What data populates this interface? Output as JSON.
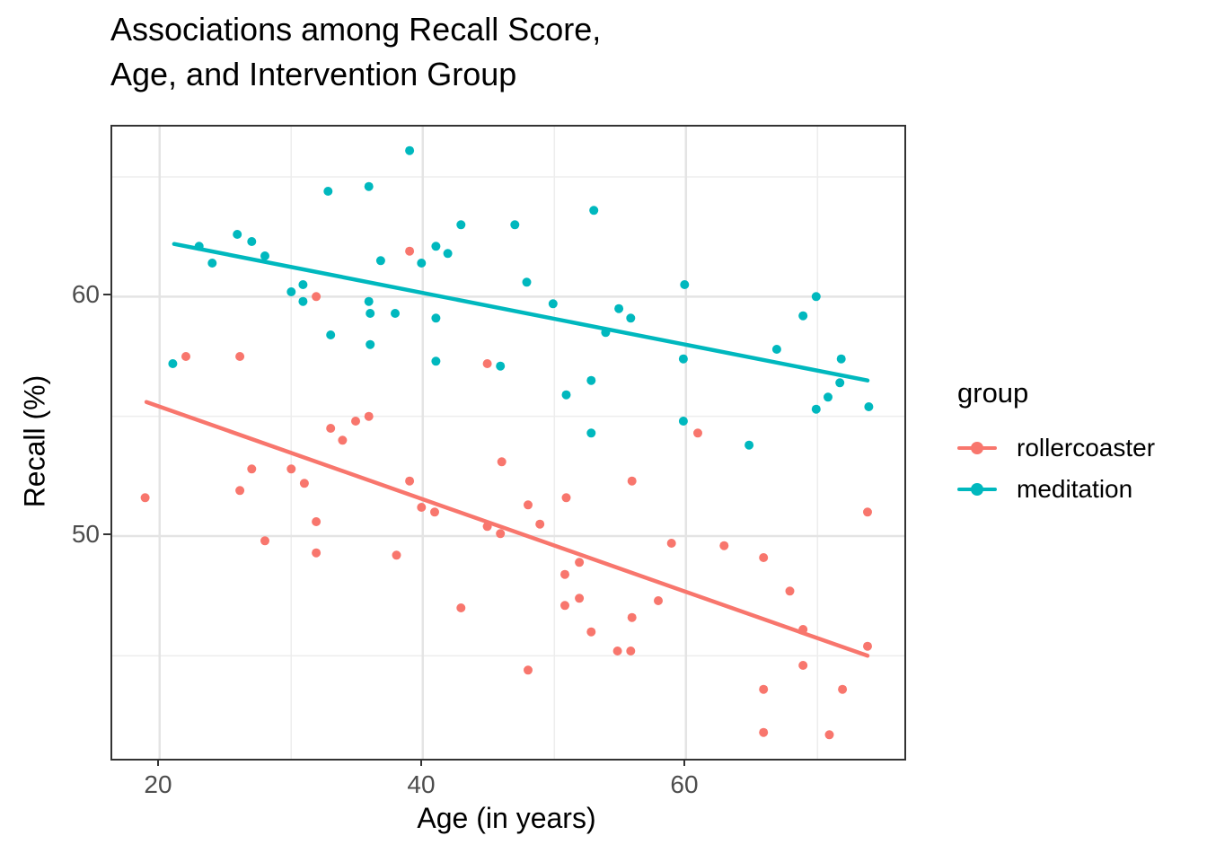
{
  "title": {
    "line1": "Associations among Recall Score,",
    "line2": "Age, and Intervention Group"
  },
  "axes": {
    "x": {
      "label": "Age (in years)",
      "tick_labels": [
        "20",
        "40",
        "60"
      ],
      "tick_values": [
        20,
        40,
        60
      ],
      "minor_values": [
        30,
        50,
        70
      ],
      "range": [
        16.4,
        76.6
      ]
    },
    "y": {
      "label": "Recall (%)",
      "tick_labels": [
        "50",
        "60"
      ],
      "tick_values": [
        50,
        60
      ],
      "minor_values": [
        45,
        55,
        65
      ],
      "range": [
        40.7,
        67.1
      ]
    }
  },
  "legend": {
    "title": "group",
    "entries": [
      {
        "label": "rollercoaster",
        "color": "#F8766D"
      },
      {
        "label": "meditation",
        "color": "#00B8BE"
      }
    ]
  },
  "style": {
    "major_grid_color": "#E4E4E4",
    "minor_grid_color": "#EDEDED",
    "panel_border_color": "#333333",
    "tick_text_color": "#4d4d4d",
    "point_radius": 5,
    "trend_width": 4.5
  },
  "chart_data": {
    "type": "scatter",
    "title": "Associations among Recall Score,\nAge, and Intervention Group",
    "xlabel": "Age (in years)",
    "ylabel": "Recall (%)",
    "xlim": [
      16.4,
      76.6
    ],
    "ylim": [
      40.7,
      67.1
    ],
    "grid": true,
    "legend_position": "right",
    "legend_title": "group",
    "series": [
      {
        "name": "rollercoaster",
        "color": "#F8766D",
        "points": [
          [
            18.9,
            51.6
          ],
          [
            22.0,
            57.5
          ],
          [
            26.1,
            57.5
          ],
          [
            26.1,
            51.9
          ],
          [
            27.0,
            52.8
          ],
          [
            28.0,
            49.8
          ],
          [
            30.0,
            52.8
          ],
          [
            31.0,
            52.2
          ],
          [
            31.9,
            60.0
          ],
          [
            31.9,
            50.6
          ],
          [
            31.9,
            49.3
          ],
          [
            33.0,
            54.5
          ],
          [
            33.9,
            54.0
          ],
          [
            34.9,
            54.8
          ],
          [
            35.9,
            55.0
          ],
          [
            38.0,
            49.2
          ],
          [
            39.0,
            61.9
          ],
          [
            39.0,
            52.3
          ],
          [
            39.9,
            51.2
          ],
          [
            40.9,
            51.0
          ],
          [
            42.9,
            47.0
          ],
          [
            44.9,
            57.2
          ],
          [
            44.9,
            50.4
          ],
          [
            45.9,
            50.1
          ],
          [
            46.0,
            53.1
          ],
          [
            48.0,
            51.3
          ],
          [
            48.0,
            44.4
          ],
          [
            48.9,
            50.5
          ],
          [
            50.9,
            51.6
          ],
          [
            50.8,
            48.4
          ],
          [
            50.8,
            47.1
          ],
          [
            51.9,
            48.9
          ],
          [
            51.9,
            47.4
          ],
          [
            52.8,
            46.0
          ],
          [
            54.8,
            45.2
          ],
          [
            55.8,
            45.2
          ],
          [
            55.9,
            52.3
          ],
          [
            55.9,
            46.6
          ],
          [
            57.9,
            47.3
          ],
          [
            58.9,
            49.7
          ],
          [
            60.9,
            54.3
          ],
          [
            62.9,
            49.6
          ],
          [
            65.9,
            49.1
          ],
          [
            65.9,
            43.6
          ],
          [
            65.9,
            41.8
          ],
          [
            67.9,
            47.7
          ],
          [
            68.9,
            46.1
          ],
          [
            68.9,
            44.6
          ],
          [
            70.9,
            41.7
          ],
          [
            71.9,
            43.6
          ],
          [
            73.8,
            51.0
          ],
          [
            73.8,
            45.4
          ]
        ],
        "trend_line": {
          "x": [
            19.0,
            73.8
          ],
          "y": [
            55.6,
            45.0
          ]
        }
      },
      {
        "name": "meditation",
        "color": "#00B8BE",
        "points": [
          [
            21.0,
            57.2
          ],
          [
            23.0,
            62.1
          ],
          [
            24.0,
            61.4
          ],
          [
            25.9,
            62.6
          ],
          [
            27.0,
            62.3
          ],
          [
            28.0,
            61.7
          ],
          [
            30.0,
            60.2
          ],
          [
            30.9,
            60.5
          ],
          [
            30.9,
            59.8
          ],
          [
            32.8,
            64.4
          ],
          [
            33.0,
            58.4
          ],
          [
            35.9,
            64.6
          ],
          [
            35.9,
            59.8
          ],
          [
            36.0,
            59.3
          ],
          [
            36.0,
            58.0
          ],
          [
            36.8,
            61.5
          ],
          [
            37.9,
            59.3
          ],
          [
            39.0,
            66.1
          ],
          [
            39.9,
            61.4
          ],
          [
            41.0,
            62.1
          ],
          [
            41.9,
            61.8
          ],
          [
            41.0,
            59.1
          ],
          [
            41.0,
            57.3
          ],
          [
            42.9,
            63.0
          ],
          [
            45.9,
            57.1
          ],
          [
            47.0,
            63.0
          ],
          [
            47.9,
            60.6
          ],
          [
            49.9,
            59.7
          ],
          [
            50.9,
            55.9
          ],
          [
            52.8,
            56.5
          ],
          [
            52.8,
            54.3
          ],
          [
            53.0,
            63.6
          ],
          [
            53.9,
            58.5
          ],
          [
            54.9,
            59.5
          ],
          [
            55.8,
            59.1
          ],
          [
            59.9,
            60.5
          ],
          [
            59.8,
            57.4
          ],
          [
            59.8,
            54.8
          ],
          [
            64.8,
            53.8
          ],
          [
            66.9,
            57.8
          ],
          [
            68.9,
            59.2
          ],
          [
            69.9,
            60.0
          ],
          [
            69.9,
            55.3
          ],
          [
            70.8,
            55.8
          ],
          [
            71.8,
            57.4
          ],
          [
            71.7,
            56.4
          ],
          [
            73.9,
            55.4
          ]
        ],
        "trend_line": {
          "x": [
            21.1,
            73.8
          ],
          "y": [
            62.2,
            56.5
          ]
        }
      }
    ]
  }
}
